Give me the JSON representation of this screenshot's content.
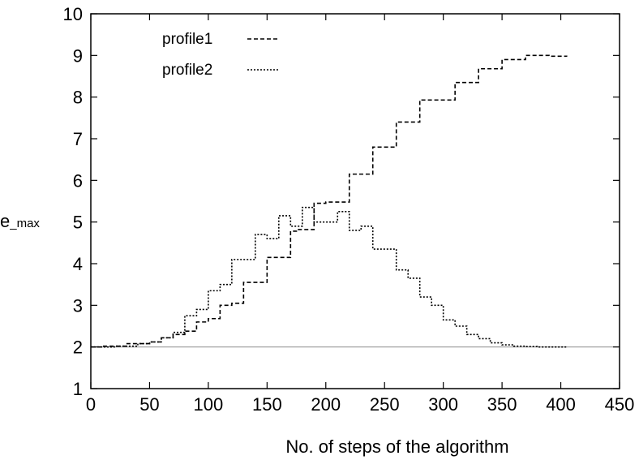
{
  "chart_data": {
    "type": "line",
    "title": "",
    "xlabel": "No. of steps of the algorithm",
    "ylabel_main": "e",
    "ylabel_sub": "_max",
    "xlim": [
      0,
      450
    ],
    "ylim": [
      1,
      10
    ],
    "xticks": [
      0,
      50,
      100,
      150,
      200,
      250,
      300,
      350,
      400,
      450
    ],
    "yticks": [
      1,
      2,
      3,
      4,
      5,
      6,
      7,
      8,
      9,
      10
    ],
    "grid": false,
    "legend_position": "top-left",
    "reference_line": {
      "y": 2,
      "color": "#999999"
    },
    "series": [
      {
        "name": "profile1",
        "style": "dashed",
        "x": [
          0,
          10,
          30,
          50,
          60,
          70,
          80,
          90,
          100,
          110,
          120,
          130,
          140,
          150,
          160,
          170,
          175,
          190,
          200,
          210,
          220,
          240,
          260,
          280,
          300,
          310,
          330,
          340,
          350,
          360,
          370,
          380,
          390,
          405
        ],
        "y": [
          2.0,
          2.02,
          2.08,
          2.12,
          2.22,
          2.3,
          2.38,
          2.6,
          2.68,
          3.0,
          3.05,
          3.55,
          3.55,
          4.15,
          4.15,
          4.78,
          4.82,
          5.45,
          5.48,
          5.48,
          6.15,
          6.8,
          7.4,
          7.93,
          7.93,
          8.35,
          8.68,
          8.68,
          8.9,
          8.9,
          9.0,
          9.0,
          8.98,
          8.97
        ]
      },
      {
        "name": "profile2",
        "style": "dotted",
        "x": [
          0,
          20,
          40,
          50,
          60,
          70,
          80,
          90,
          100,
          110,
          120,
          130,
          140,
          150,
          160,
          170,
          180,
          190,
          200,
          210,
          220,
          230,
          240,
          250,
          260,
          270,
          280,
          290,
          300,
          310,
          320,
          330,
          340,
          350,
          360,
          370,
          380,
          390,
          405
        ],
        "y": [
          2.0,
          2.02,
          2.08,
          2.12,
          2.22,
          2.35,
          2.75,
          2.9,
          3.35,
          3.5,
          4.1,
          4.1,
          4.7,
          4.6,
          5.15,
          4.9,
          5.35,
          5.0,
          5.0,
          5.25,
          4.8,
          4.9,
          4.35,
          4.35,
          3.85,
          3.65,
          3.2,
          3.0,
          2.65,
          2.5,
          2.3,
          2.2,
          2.1,
          2.05,
          2.02,
          2.01,
          2.0,
          2.0,
          2.0
        ]
      }
    ]
  }
}
